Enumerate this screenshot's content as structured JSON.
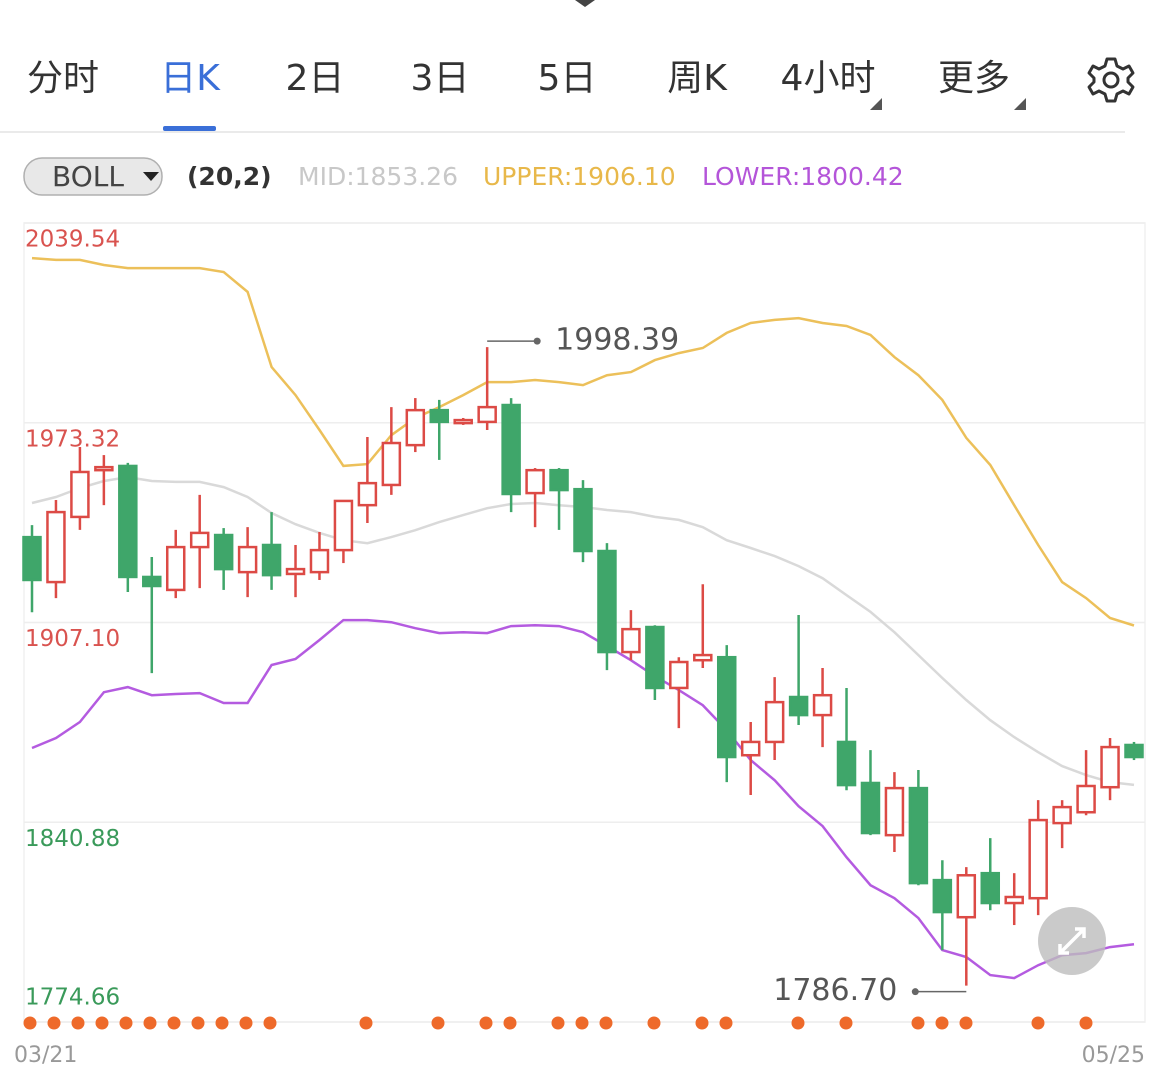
{
  "tabs": [
    "分时",
    "日K",
    "2日",
    "3日",
    "5日",
    "周K",
    "4小时",
    "更多"
  ],
  "active_tab": 1,
  "chart_data": {
    "type": "candlestick",
    "indicator": {
      "name": "BOLL",
      "params": "(20,2)"
    },
    "categories": [
      "03/21",
      null,
      null,
      null,
      null,
      null,
      null,
      null,
      null,
      null,
      null,
      null,
      null,
      null,
      null,
      null,
      null,
      null,
      null,
      null,
      null,
      null,
      null,
      null,
      null,
      null,
      null,
      null,
      null,
      null,
      null,
      null,
      null,
      null,
      null,
      null,
      null,
      null,
      null,
      null,
      null,
      null,
      null,
      null,
      null,
      null,
      "05/25"
    ],
    "open": [
      1935.4,
      1920.5,
      1942.1,
      1957.6,
      1959.0,
      1922.2,
      1917.9,
      1932.1,
      1936.1,
      1923.8,
      1932.8,
      1923.2,
      1923.8,
      1931.1,
      1946.0,
      1952.7,
      1965.9,
      1977.5,
      1973.2,
      1973.6,
      1979.2,
      1950.0,
      1957.6,
      1951.3,
      1930.8,
      1897.3,
      1905.6,
      1885.4,
      1894.6,
      1895.6,
      1863.1,
      1867.5,
      1882.4,
      1876.4,
      1867.5,
      1853.9,
      1836.6,
      1852.2,
      1821.7,
      1809.4,
      1824.0,
      1814.1,
      1815.7,
      1840.6,
      1844.2,
      1852.5,
      1866.5
    ],
    "high": [
      1939.4,
      1947.7,
      1965.3,
      1962.6,
      1960.0,
      1928.8,
      1937.8,
      1949.4,
      1938.4,
      1938.7,
      1943.7,
      1932.8,
      1937.1,
      1947.7,
      1968.6,
      1978.5,
      1981.5,
      1980.9,
      1974.9,
      1998.39,
      1981.5,
      1958.3,
      1958.3,
      1954.3,
      1933.4,
      1911.2,
      1906.2,
      1895.6,
      1919.8,
      1899.6,
      1874.1,
      1889.0,
      1909.6,
      1892.0,
      1885.4,
      1864.8,
      1857.5,
      1858.2,
      1828.3,
      1826.0,
      1835.6,
      1824.0,
      1848.2,
      1848.2,
      1864.8,
      1868.8,
      1867.5
    ],
    "low": [
      1910.5,
      1915.2,
      1937.8,
      1946.0,
      1917.2,
      1890.3,
      1915.2,
      1918.5,
      1917.9,
      1915.5,
      1917.9,
      1915.5,
      1921.2,
      1926.8,
      1940.1,
      1949.4,
      1963.6,
      1961.0,
      1972.6,
      1970.9,
      1943.7,
      1938.7,
      1937.8,
      1927.1,
      1891.3,
      1894.6,
      1881.4,
      1872.1,
      1892.0,
      1854.2,
      1849.9,
      1861.5,
      1873.1,
      1865.8,
      1851.5,
      1836.6,
      1831.0,
      1820.0,
      1798.5,
      1786.7,
      1811.7,
      1806.8,
      1810.1,
      1832.3,
      1843.2,
      1848.2,
      1861.5
    ],
    "close": [
      1921.2,
      1943.7,
      1957.0,
      1958.6,
      1922.2,
      1919.2,
      1932.1,
      1936.8,
      1924.8,
      1932.1,
      1922.8,
      1924.8,
      1931.1,
      1947.4,
      1953.3,
      1966.6,
      1977.5,
      1973.6,
      1974.2,
      1978.5,
      1949.7,
      1957.6,
      1951.0,
      1930.8,
      1897.3,
      1904.9,
      1885.4,
      1894.0,
      1896.3,
      1862.5,
      1867.5,
      1880.7,
      1876.4,
      1883.0,
      1853.2,
      1837.3,
      1852.2,
      1820.7,
      1811.1,
      1823.3,
      1814.1,
      1816.1,
      1841.6,
      1845.9,
      1852.9,
      1865.8,
      1862.5
    ],
    "up_color": "#dc4a45",
    "down_color": "#3fa66a",
    "max_label": "1998.39",
    "min_label": "1786.70",
    "series": [
      {
        "color": "#d9d9d9",
        "values": [
          1946.7,
          1948.7,
          1951.7,
          1954.0,
          1955.3,
          1954.0,
          1953.7,
          1953.7,
          1952.0,
          1948.7,
          1943.4,
          1939.7,
          1936.8,
          1934.4,
          1933.4,
          1935.4,
          1937.7,
          1940.4,
          1942.7,
          1945.0,
          1946.4,
          1946.7,
          1946.0,
          1945.4,
          1944.4,
          1943.7,
          1942.1,
          1941.1,
          1938.7,
          1934.4,
          1931.8,
          1929.1,
          1925.8,
          1921.8,
          1916.2,
          1910.6,
          1903.9,
          1896.3,
          1888.7,
          1881.4,
          1874.7,
          1869.1,
          1864.1,
          1859.5,
          1856.5,
          1854.2,
          1853.26
        ],
        "value_labels": [
          null,
          null,
          null,
          null,
          null,
          null,
          null,
          null,
          null,
          null,
          null,
          null,
          null,
          null,
          null,
          null,
          null,
          null,
          null,
          null,
          null,
          null,
          null,
          null,
          null,
          null,
          null,
          null,
          null,
          null,
          null,
          null,
          null,
          null,
          null,
          null,
          null,
          null,
          null,
          null,
          null,
          null,
          null,
          null,
          null,
          null,
          "MID:1853.26"
        ],
        "label_color": "#c8c8c8"
      },
      {
        "color": "#ecc05a",
        "values": [
          2027.9,
          2027.3,
          2027.3,
          2025.6,
          2024.6,
          2024.6,
          2024.6,
          2024.6,
          2023.3,
          2016.7,
          1991.8,
          1982.5,
          1970.9,
          1959.0,
          1959.6,
          1969.2,
          1974.9,
          1978.5,
          1982.5,
          1986.8,
          1986.8,
          1987.5,
          1986.8,
          1985.8,
          1989.1,
          1990.1,
          1994.1,
          1996.4,
          1998.1,
          2003.1,
          2006.4,
          2007.4,
          2008.0,
          2006.4,
          2005.4,
          2002.4,
          1995.1,
          1989.1,
          1980.9,
          1968.3,
          1959.3,
          1946.0,
          1932.8,
          1920.5,
          1915.2,
          1908.6,
          1906.1
        ],
        "value_labels": [
          null,
          null,
          null,
          null,
          null,
          null,
          null,
          null,
          null,
          null,
          null,
          null,
          null,
          null,
          null,
          null,
          null,
          null,
          null,
          null,
          null,
          null,
          null,
          null,
          null,
          null,
          null,
          null,
          null,
          null,
          null,
          null,
          null,
          null,
          null,
          null,
          null,
          null,
          null,
          null,
          null,
          null,
          null,
          null,
          null,
          null,
          "UPPER:1906.10"
        ],
        "label_color": "#e8b84a"
      },
      {
        "color": "#b45be0",
        "values": [
          1865.5,
          1868.8,
          1874.1,
          1884.0,
          1885.7,
          1883.0,
          1883.4,
          1883.7,
          1880.4,
          1880.4,
          1893.0,
          1895.0,
          1901.3,
          1907.9,
          1907.9,
          1907.2,
          1905.2,
          1903.6,
          1903.9,
          1903.6,
          1905.9,
          1906.2,
          1905.9,
          1903.9,
          1899.3,
          1894.6,
          1889.3,
          1884.7,
          1879.7,
          1871.4,
          1861.5,
          1854.8,
          1846.2,
          1839.6,
          1829.3,
          1820.0,
          1815.7,
          1809.1,
          1798.5,
          1796.2,
          1790.2,
          1789.2,
          1793.5,
          1796.8,
          1797.5,
          1799.5,
          1800.42
        ],
        "value_labels": [
          null,
          null,
          null,
          null,
          null,
          null,
          null,
          null,
          null,
          null,
          null,
          null,
          null,
          null,
          null,
          null,
          null,
          null,
          null,
          null,
          null,
          null,
          null,
          null,
          null,
          null,
          null,
          null,
          null,
          null,
          null,
          null,
          null,
          null,
          null,
          null,
          null,
          null,
          null,
          null,
          null,
          null,
          null,
          null,
          null,
          null,
          "LOWER:1800.42"
        ],
        "label_color": "#b455d9"
      }
    ],
    "ylim": [
      1774.66,
      2039.54
    ],
    "yticks": [
      2039.54,
      1973.32,
      {
        "value": 1907.1,
        "label": "1907.10"
      },
      1840.88,
      1774.66
    ],
    "ytick_colors": [
      "#d9534f",
      "#d9534f",
      "#d9534f",
      "#3a9a5a",
      "#3a9a5a"
    ],
    "grid": true
  }
}
